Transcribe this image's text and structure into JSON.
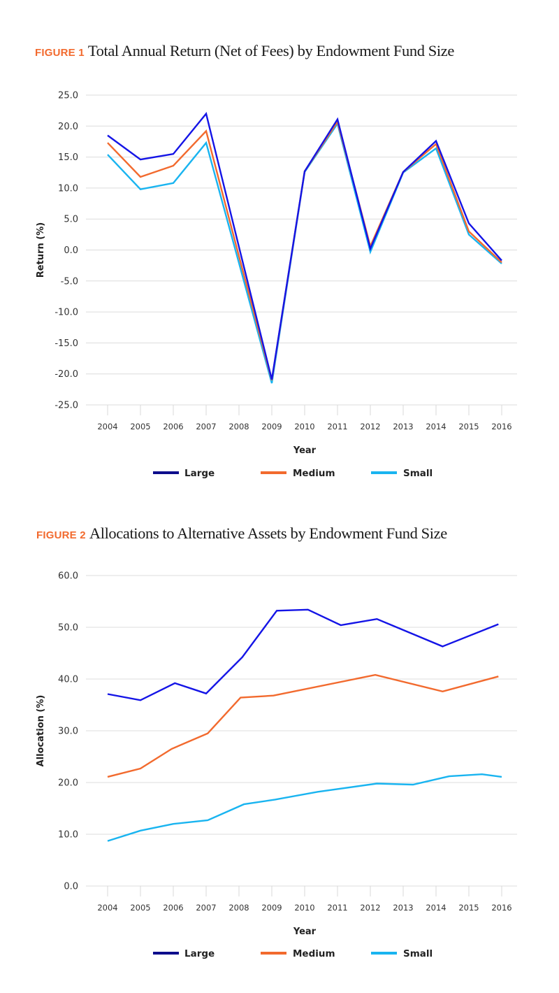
{
  "figures": [
    {
      "label": "FIGURE 1",
      "title": "Total Annual Return (Net of Fees) by Endowment Fund Size"
    },
    {
      "label": "FIGURE 2",
      "title": "Allocations to Alternative Assets by Endowment Fund Size"
    }
  ],
  "colors": {
    "figure_label": "#f26a2e",
    "large_line": "#1414e6",
    "large_legend": "#0d0d8c",
    "medium": "#f26a2e",
    "small": "#19b4f0",
    "grid": "#dcdcdc"
  },
  "chart_data": [
    {
      "type": "line",
      "title": "Total Annual Return (Net of Fees) by Endowment Fund Size",
      "xlabel": "Year",
      "ylabel": "Return (%)",
      "ylim": [
        -25,
        25
      ],
      "yticks": [
        "25.0",
        "20.0",
        "15.0",
        "10.0",
        "5.0",
        "0.0",
        "-5.0",
        "-10.0",
        "-15.0",
        "-20.0",
        "-25.0"
      ],
      "ytick_values": [
        25,
        20,
        15,
        10,
        5,
        0,
        -5,
        -10,
        -15,
        -20,
        -25
      ],
      "categories": [
        "2004",
        "2005",
        "2006",
        "2007",
        "2008",
        "2009",
        "2010",
        "2011",
        "2012",
        "2013",
        "2014",
        "2015",
        "2016"
      ],
      "xlim": [
        2004,
        2016
      ],
      "grid": true,
      "legend": "bottom-center",
      "series": [
        {
          "name": "Large",
          "x": [
            2004,
            2005,
            2006,
            2007,
            2008,
            2009,
            2010,
            2011,
            2012,
            2013,
            2014,
            2015,
            2016
          ],
          "values": [
            18.5,
            14.6,
            15.5,
            22.0,
            0.5,
            -20.9,
            12.7,
            21.1,
            0.2,
            12.6,
            17.6,
            4.3,
            -1.7
          ]
        },
        {
          "name": "Medium",
          "x": [
            2004,
            2005,
            2006,
            2007,
            2008,
            2009,
            2010,
            2011,
            2012,
            2013,
            2014,
            2015,
            2016
          ],
          "values": [
            17.3,
            11.8,
            13.6,
            19.2,
            -1.0,
            -21.0,
            12.7,
            20.7,
            0.6,
            12.6,
            17.1,
            3.0,
            -2.0
          ]
        },
        {
          "name": "Small",
          "x": [
            2004,
            2005,
            2006,
            2007,
            2008,
            2009,
            2010,
            2011,
            2012,
            2013,
            2014,
            2015,
            2016
          ],
          "values": [
            15.4,
            9.8,
            10.8,
            17.3,
            -2.1,
            -21.5,
            12.6,
            20.4,
            -0.3,
            12.5,
            16.4,
            2.5,
            -2.2
          ]
        }
      ]
    },
    {
      "type": "line",
      "title": "Allocations to Alternative Assets by Endowment Fund Size",
      "xlabel": "Year",
      "ylabel": "Allocation (%)",
      "ylim": [
        0,
        60
      ],
      "yticks": [
        "60.0",
        "50.0",
        "40.0",
        "30.0",
        "20.0",
        "10.0",
        "0.0"
      ],
      "ytick_values": [
        60,
        50,
        40,
        30,
        20,
        10,
        0
      ],
      "categories": [
        "2004",
        "2005",
        "2006",
        "2007",
        "2008",
        "2009",
        "2010",
        "2011",
        "2012",
        "2013",
        "2014",
        "2015",
        "2016"
      ],
      "xlim": [
        2004,
        2016
      ],
      "grid": true,
      "legend": "bottom-center",
      "series": [
        {
          "name": "Large",
          "x": [
            2004,
            2005,
            2006.05,
            2007,
            2008.1,
            2009.15,
            2010.1,
            2011.1,
            2012.2,
            2014.2,
            2015.9
          ],
          "values": [
            37.1,
            35.9,
            39.2,
            37.2,
            44.2,
            53.2,
            53.4,
            50.4,
            51.6,
            46.3,
            50.6
          ]
        },
        {
          "name": "Medium",
          "x": [
            2004,
            2005,
            2005.95,
            2007.05,
            2008.05,
            2009.05,
            2012.15,
            2014.2,
            2015.9
          ],
          "values": [
            21.1,
            22.7,
            26.5,
            29.5,
            36.4,
            36.8,
            40.8,
            37.6,
            40.5
          ]
        },
        {
          "name": "Small",
          "x": [
            2004,
            2005,
            2006,
            2007.05,
            2008.15,
            2009.1,
            2010.4,
            2012.2,
            2013.3,
            2014.4,
            2015.4,
            2016
          ],
          "values": [
            8.7,
            10.7,
            12.0,
            12.7,
            15.8,
            16.7,
            18.2,
            19.8,
            19.6,
            21.2,
            21.6,
            21.1
          ]
        }
      ]
    }
  ]
}
